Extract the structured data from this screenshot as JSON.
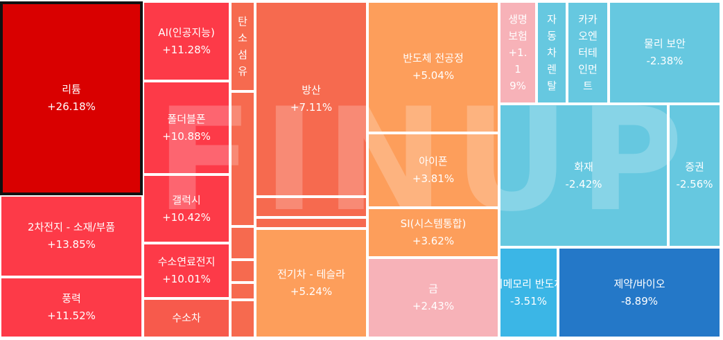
{
  "chart_data": {
    "type": "treemap",
    "watermark": "FINUP",
    "nodes": [
      {
        "name": "리튬",
        "change": "+26.18%",
        "color": "#d90000",
        "selected": true
      },
      {
        "name": "2차전지 - 소재/부품",
        "change": "+13.85%",
        "color": "#fd3a48"
      },
      {
        "name": "풍력",
        "change": "+11.52%",
        "color": "#fd3a48"
      },
      {
        "name": "AI(인공지능)",
        "change": "+11.28%",
        "color": "#fd3a48"
      },
      {
        "name": "폴더블폰",
        "change": "+10.88%",
        "color": "#fd3a48"
      },
      {
        "name": "갤럭시",
        "change": "+10.42%",
        "color": "#fd3a48"
      },
      {
        "name": "수소연료전지",
        "change": "+10.01%",
        "color": "#fd3a48"
      },
      {
        "name": "수소차",
        "change": "",
        "color": "#f75a4c"
      },
      {
        "name": "탄소섬유",
        "change": "",
        "color": "#f66a4f"
      },
      {
        "name": "",
        "change": "",
        "color": "#f66a4f"
      },
      {
        "name": "",
        "change": "",
        "color": "#f66a4f"
      },
      {
        "name": "",
        "change": "",
        "color": "#f66a4f"
      },
      {
        "name": "",
        "change": "",
        "color": "#f66a4f"
      },
      {
        "name": "",
        "change": "",
        "color": "#f66a4f"
      },
      {
        "name": "방산",
        "change": "+7.11%",
        "color": "#f66a4f"
      },
      {
        "name": "",
        "change": "",
        "color": "#f66a4f"
      },
      {
        "name": "",
        "change": "",
        "color": "#f66a4f"
      },
      {
        "name": "전기차 - 테슬라",
        "change": "+5.24%",
        "color": "#fd9e5b"
      },
      {
        "name": "반도체 전공정",
        "change": "+5.04%",
        "color": "#fd9e5b"
      },
      {
        "name": "아이폰",
        "change": "+3.81%",
        "color": "#fd9e5b"
      },
      {
        "name": "SI(시스템통합)",
        "change": "+3.62%",
        "color": "#fd9e5b"
      },
      {
        "name": "금",
        "change": "+2.43%",
        "color": "#f7b2b8"
      },
      {
        "name": "생명보험",
        "change": "+1.19%",
        "color": "#f7b2b8"
      },
      {
        "name": "자동차렌탈",
        "change": "",
        "color": "#66c8e0"
      },
      {
        "name": "카카오엔터테인먼트",
        "change": "",
        "color": "#66c8e0"
      },
      {
        "name": "물리 보안",
        "change": "-2.38%",
        "color": "#66c8e0"
      },
      {
        "name": "화재",
        "change": "-2.42%",
        "color": "#66c8e0"
      },
      {
        "name": "증권",
        "change": "-2.56%",
        "color": "#66c8e0"
      },
      {
        "name": "비메모리 반도체",
        "change": "-3.51%",
        "color": "#3bb6e6"
      },
      {
        "name": "제약/바이오",
        "change": "-8.89%",
        "color": "#2478c8"
      }
    ]
  }
}
